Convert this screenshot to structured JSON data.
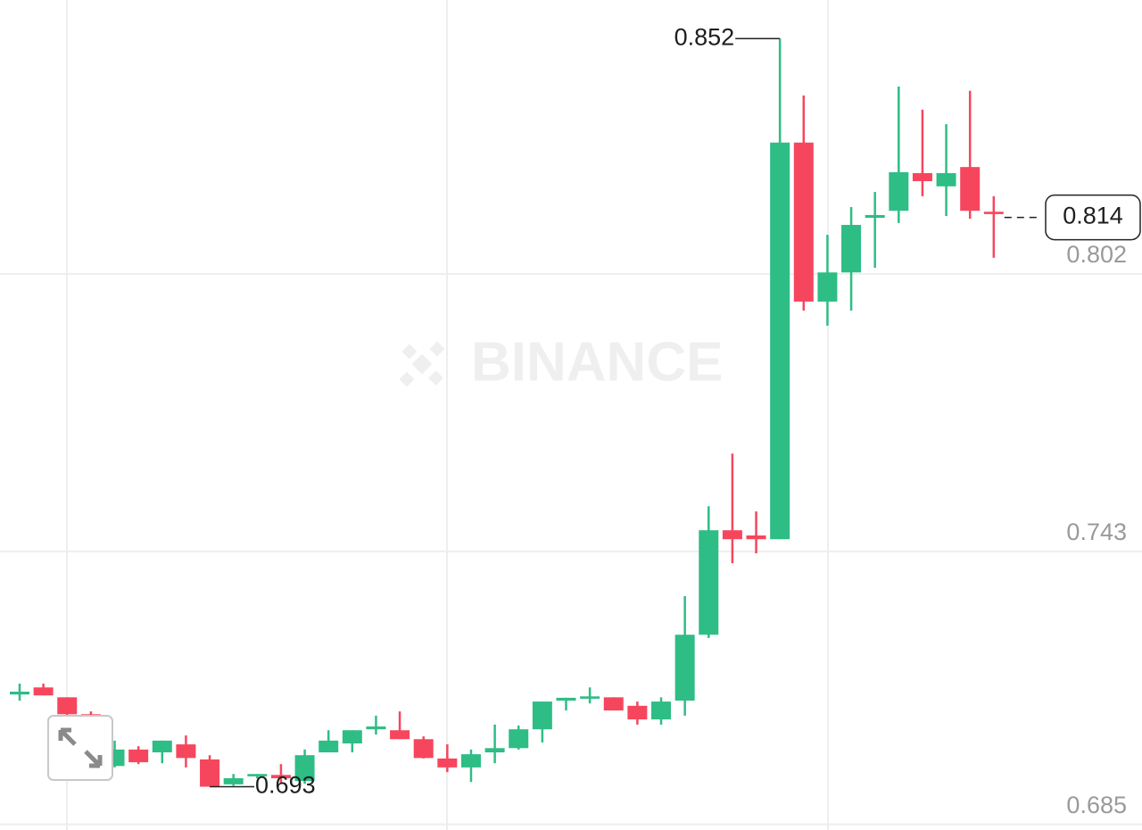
{
  "chart_data": {
    "type": "candlestick",
    "watermark": "BINANCE",
    "open": [
      0.7126,
      0.7141,
      0.712,
      0.7084,
      0.6974,
      0.7009,
      0.7003,
      0.702,
      0.6988,
      0.6935,
      0.6952,
      0.6955,
      0.6942,
      0.7003,
      0.7022,
      0.7052,
      0.705,
      0.7031,
      0.699,
      0.6971,
      0.7003,
      0.7012,
      0.7052,
      0.7113,
      0.7117,
      0.712,
      0.7102,
      0.7073,
      0.7113,
      0.7253,
      0.7475,
      0.7464,
      0.7456,
      0.8299,
      0.7961,
      0.8023,
      0.8139,
      0.8154,
      0.8234,
      0.8206,
      0.8247,
      0.8152
    ],
    "high": [
      0.7149,
      0.7149,
      0.712,
      0.709,
      0.7028,
      0.7016,
      0.7028,
      0.7039,
      0.6997,
      0.6957,
      0.6957,
      0.6978,
      0.7009,
      0.705,
      0.705,
      0.7081,
      0.709,
      0.7037,
      0.702,
      0.7009,
      0.7062,
      0.706,
      0.7111,
      0.7119,
      0.7141,
      0.712,
      0.7111,
      0.712,
      0.7335,
      0.7526,
      0.7638,
      0.7515,
      0.852,
      0.8399,
      0.8103,
      0.8162,
      0.8194,
      0.8418,
      0.8369,
      0.8338,
      0.8409,
      0.8185
    ],
    "low": [
      0.7113,
      0.7124,
      0.7079,
      0.7009,
      0.6971,
      0.6978,
      0.698,
      0.6971,
      0.693,
      0.6932,
      0.6948,
      0.6936,
      0.6936,
      0.7003,
      0.7003,
      0.7041,
      0.7031,
      0.699,
      0.6961,
      0.694,
      0.698,
      0.7009,
      0.7024,
      0.7092,
      0.7107,
      0.7092,
      0.7062,
      0.7062,
      0.7081,
      0.7246,
      0.7405,
      0.7426,
      0.7456,
      0.7942,
      0.791,
      0.7942,
      0.8033,
      0.8128,
      0.8185,
      0.8143,
      0.8137,
      0.8054
    ],
    "close": [
      0.7132,
      0.7124,
      0.7084,
      0.7022,
      0.7009,
      0.6982,
      0.7028,
      0.6991,
      0.693,
      0.6948,
      0.6957,
      0.6948,
      0.6997,
      0.7028,
      0.705,
      0.7058,
      0.7031,
      0.6991,
      0.6971,
      0.6999,
      0.7012,
      0.7052,
      0.7111,
      0.7119,
      0.7122,
      0.7092,
      0.7073,
      0.7111,
      0.7253,
      0.7475,
      0.7456,
      0.7456,
      0.8299,
      0.7961,
      0.8023,
      0.8124,
      0.8145,
      0.8236,
      0.8217,
      0.8234,
      0.8154,
      0.8147
    ],
    "up_color": "#2ebd85",
    "down_color": "#f6465d",
    "high_label_index": 32,
    "low_label_index": 8,
    "last_price": 0.814,
    "ylim": [
      0.6838,
      0.8602
    ],
    "yticks": [
      0.802,
      0.743,
      0.685
    ],
    "grid": true
  }
}
